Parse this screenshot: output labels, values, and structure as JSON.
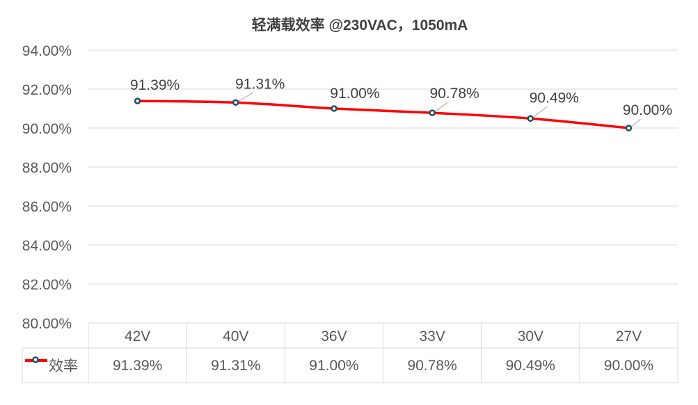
{
  "chart_data": {
    "type": "line",
    "title": "轻满载效率 @230VAC，1050mA",
    "categories": [
      "42V",
      "40V",
      "36V",
      "33V",
      "30V",
      "27V"
    ],
    "series": [
      {
        "name": "效率",
        "values": [
          91.39,
          91.31,
          91.0,
          90.78,
          90.49,
          90.0
        ],
        "labels": [
          "91.39%",
          "91.31%",
          "91.00%",
          "90.78%",
          "90.49%",
          "90.00%"
        ]
      }
    ],
    "ylim": [
      80,
      94
    ],
    "ytick_step": 2,
    "ytick_labels": [
      "80.00%",
      "82.00%",
      "84.00%",
      "86.00%",
      "88.00%",
      "90.00%",
      "92.00%",
      "94.00%"
    ],
    "grid": true,
    "legend": "data-table",
    "data_table": true,
    "colors": {
      "line": "#ff0000",
      "marker_edge": "#1f4e5f",
      "marker_fill": "#ffffff",
      "grid": "#d9d9d9"
    }
  }
}
